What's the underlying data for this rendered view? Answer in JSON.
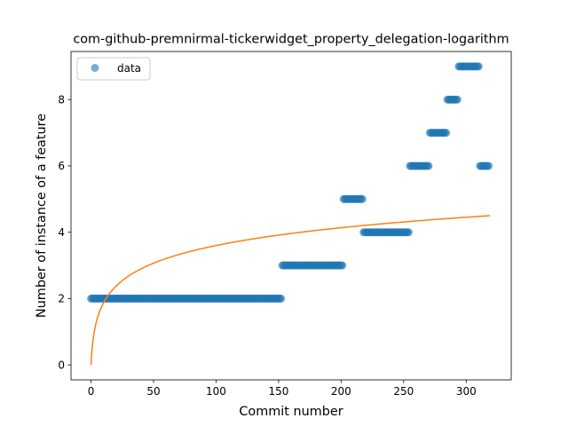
{
  "chart_data": {
    "type": "scatter",
    "title": "com-github-premnirmal-tickerwidget_property_delegation-logarithm",
    "xlabel": "Commit number",
    "ylabel": "Number of instance of a feature",
    "xlim": [
      -16,
      336
    ],
    "ylim": [
      -0.45,
      9.45
    ],
    "xticks": [
      0,
      50,
      100,
      150,
      200,
      250,
      300
    ],
    "yticks": [
      0,
      2,
      4,
      6,
      8
    ],
    "legend": {
      "position": "top-left",
      "entries": [
        "data"
      ]
    },
    "grid": false,
    "colors": {
      "data": "#1f77b4",
      "fit": "#ff7f0e"
    },
    "series": [
      {
        "name": "data",
        "kind": "scatter",
        "segments": [
          {
            "x_start": 0,
            "x_end": 153,
            "y": 2
          },
          {
            "x_start": 153,
            "x_end": 202,
            "y": 3
          },
          {
            "x_start": 202,
            "x_end": 218,
            "y": 5
          },
          {
            "x_start": 218,
            "x_end": 255,
            "y": 4
          },
          {
            "x_start": 255,
            "x_end": 271,
            "y": 6
          },
          {
            "x_start": 271,
            "x_end": 285,
            "y": 7
          },
          {
            "x_start": 285,
            "x_end": 294,
            "y": 8
          },
          {
            "x_start": 294,
            "x_end": 311,
            "y": 9
          },
          {
            "x_start": 311,
            "x_end": 319,
            "y": 6
          }
        ]
      },
      {
        "kind": "line",
        "function": "y = 0.78 * ln(x + 1)",
        "x_range": [
          0,
          319
        ]
      }
    ]
  }
}
